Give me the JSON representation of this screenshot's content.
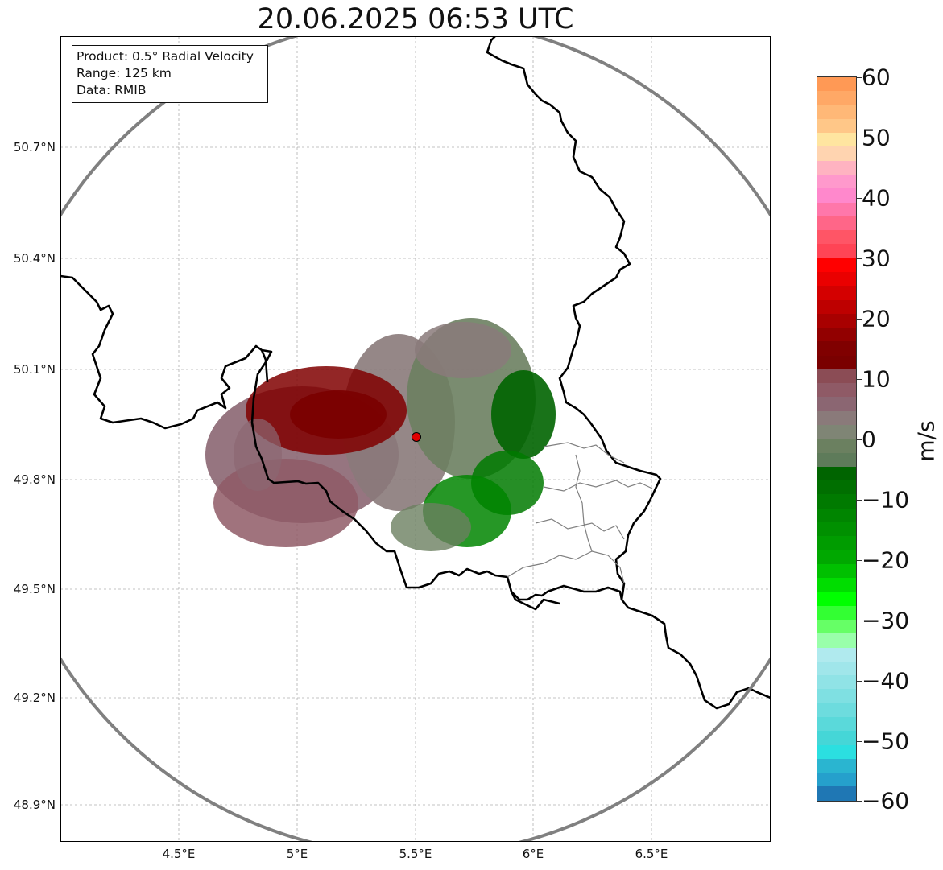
{
  "title": "20.06.2025 06:53 UTC",
  "info_box": {
    "product": "Product: 0.5° Radial Velocity",
    "range": "Range: 125 km",
    "data": "Data: RMIB"
  },
  "map": {
    "lon_range": [
      4.0,
      7.0
    ],
    "lat_range": [
      48.8,
      51.0
    ],
    "x_ticks": [
      "4.5°E",
      "5°E",
      "5.5°E",
      "6°E",
      "6.5°E"
    ],
    "y_ticks": [
      "50.7°N",
      "50.4°N",
      "50.1°N",
      "49.8°N",
      "49.5°N",
      "49.2°N",
      "48.9°N"
    ],
    "radar_site": {
      "lon": 5.505,
      "lat": 49.914
    },
    "range_ring_color": "#808080",
    "border_color": "#000000",
    "grid": true
  },
  "colorbar": {
    "unit": "m/s",
    "ticks": [
      "60",
      "50",
      "40",
      "30",
      "20",
      "10",
      "0",
      "−10",
      "−20",
      "−30",
      "−40",
      "−50",
      "−60"
    ],
    "range": [
      -60,
      60
    ],
    "colors_top_to_bottom": [
      "#ff9955",
      "#ffa866",
      "#ffb877",
      "#ffc788",
      "#ffe5a0",
      "#ffd4b0",
      "#ffb3c1",
      "#ff99cc",
      "#ff88cc",
      "#ff77aa",
      "#ff6688",
      "#ff5566",
      "#ff4455",
      "#ff0000",
      "#ea0000",
      "#d40000",
      "#be0000",
      "#a80000",
      "#920000",
      "#800000",
      "#7a0000",
      "#8b4c55",
      "#8f5a66",
      "#8b6672",
      "#8a7a7a",
      "#7f8575",
      "#6b8060",
      "#5e7b5a",
      "#006400",
      "#006f00",
      "#007a00",
      "#008500",
      "#009000",
      "#009c00",
      "#00a800",
      "#00c000",
      "#00dd00",
      "#00ff00",
      "#33ff33",
      "#66ff66",
      "#99ffaa",
      "#b0eaee",
      "#a0e6ea",
      "#90e3e6",
      "#7fe0e2",
      "#6ddcde",
      "#5ad9da",
      "#45d6d7",
      "#2bdfe0",
      "#2ab5d0",
      "#25a0cc",
      "#1f77b4"
    ]
  }
}
